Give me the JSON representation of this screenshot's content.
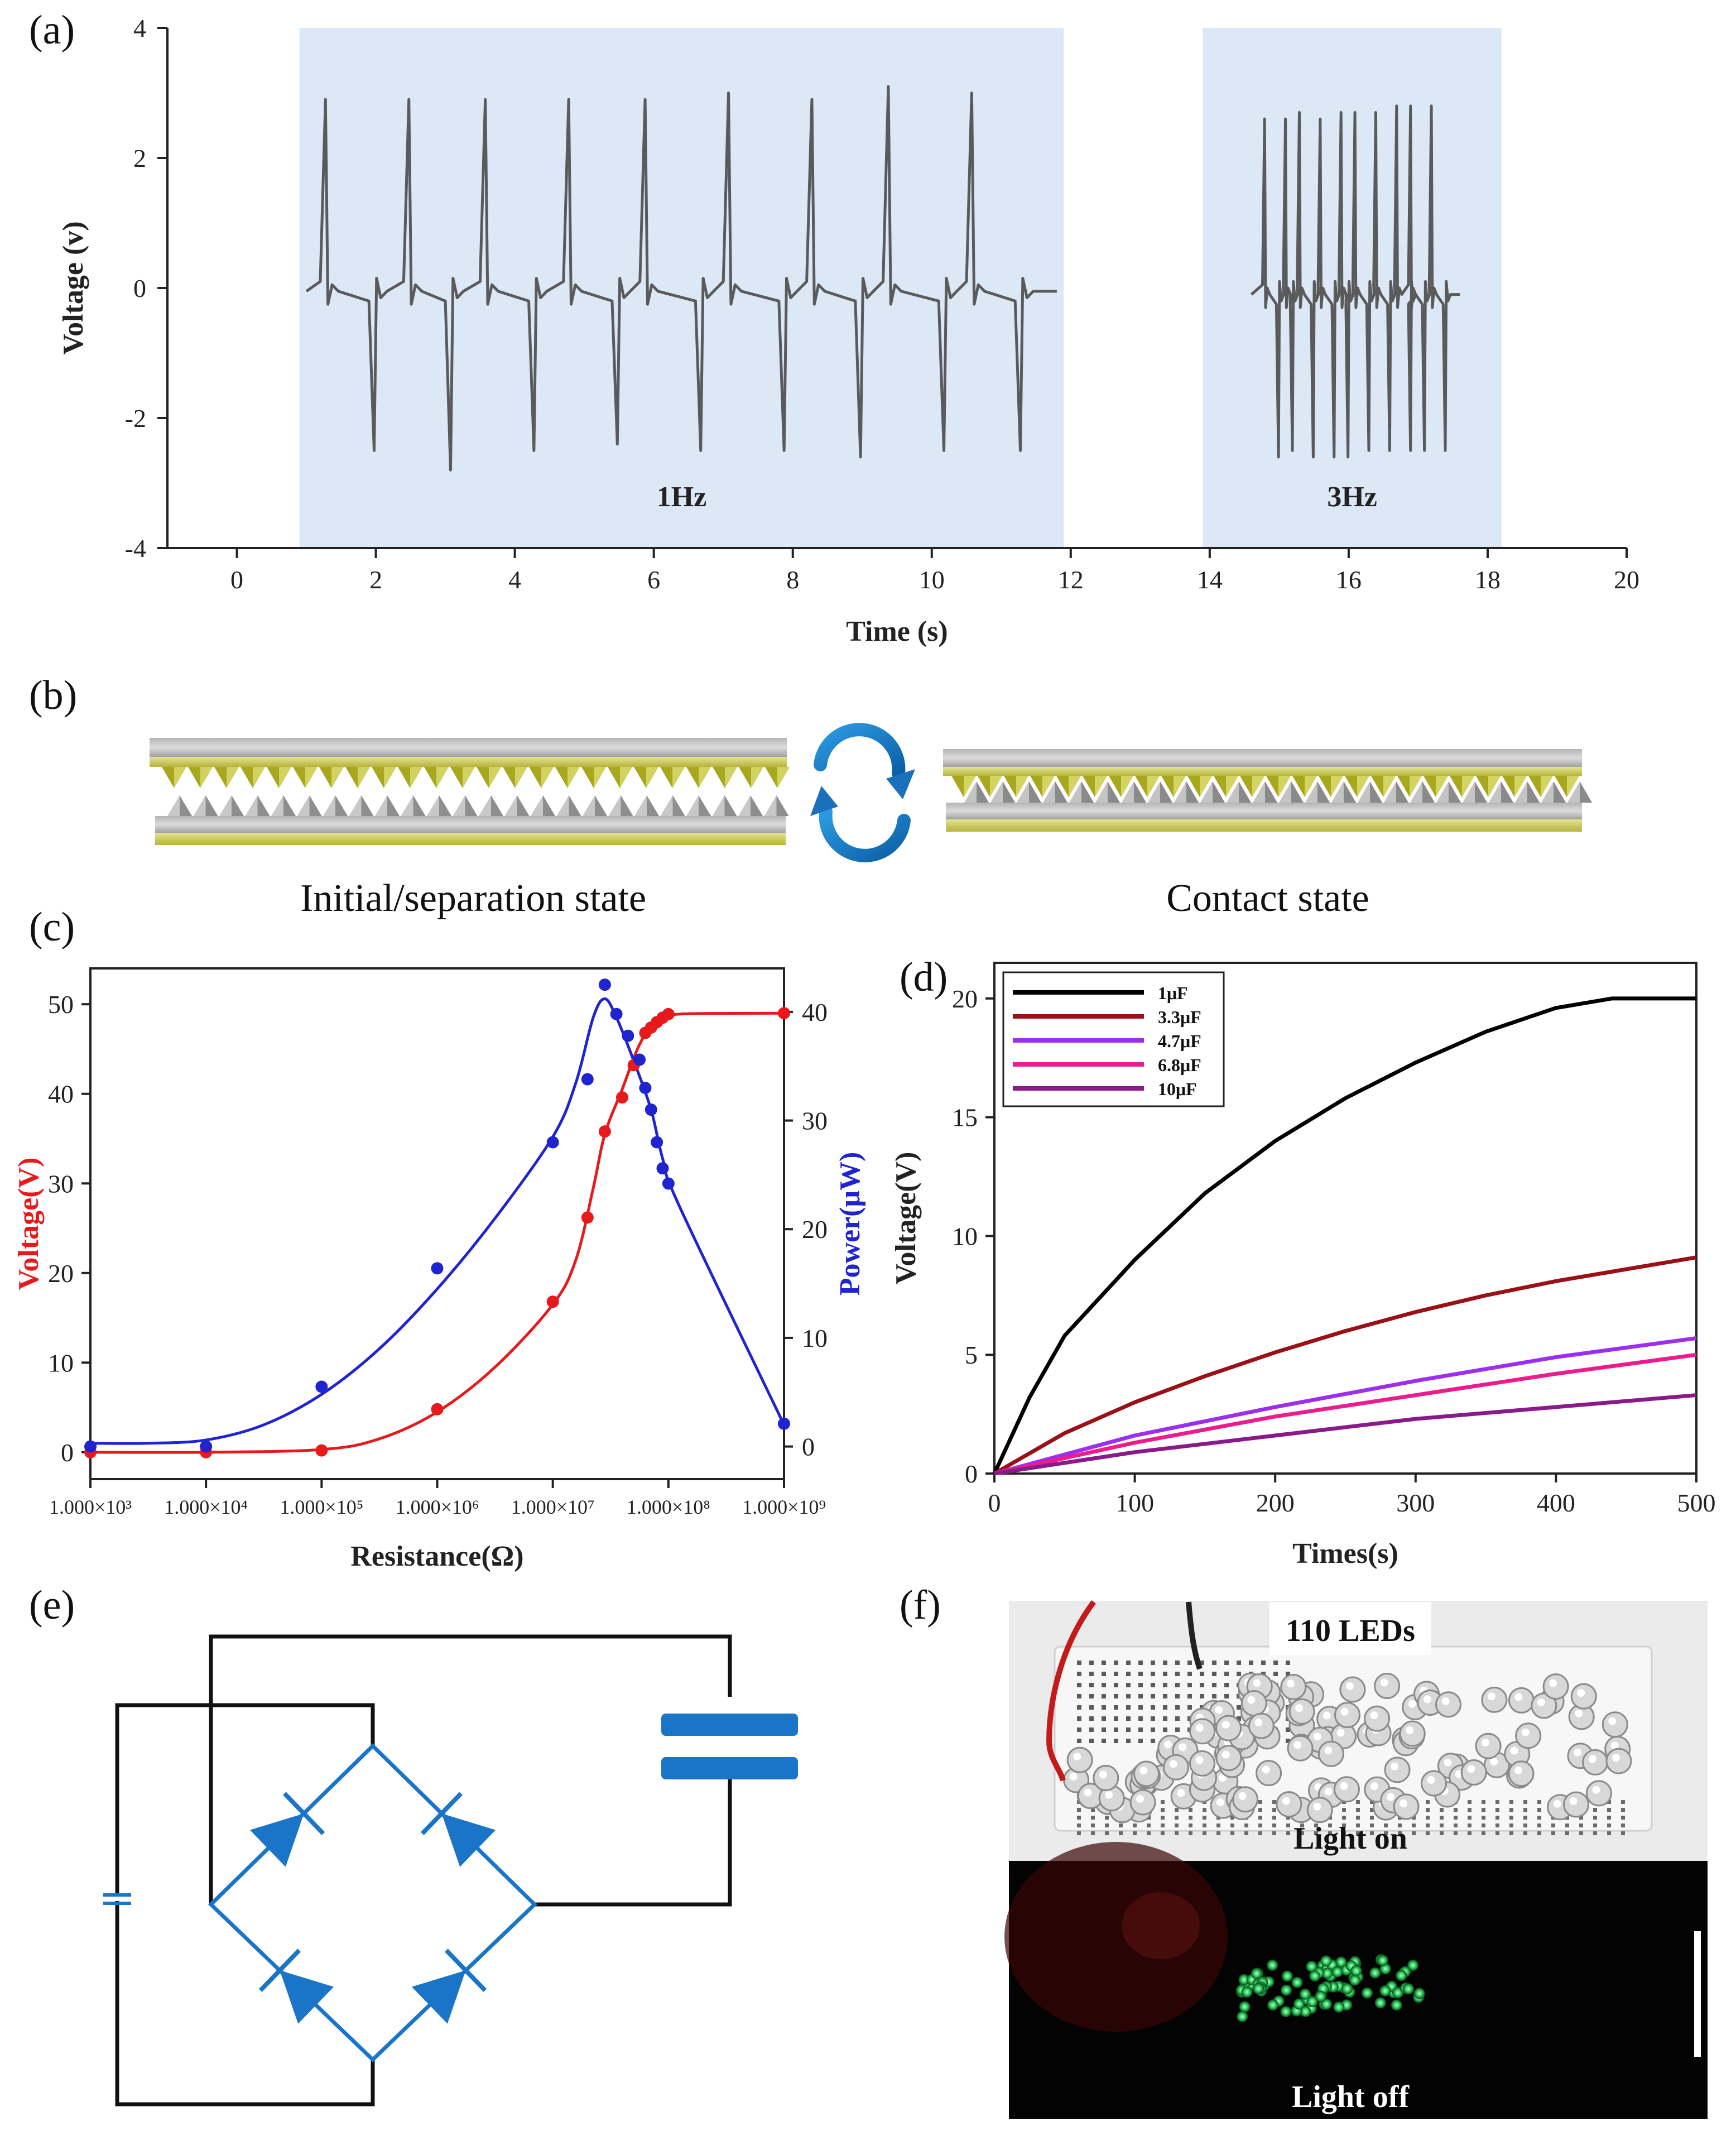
{
  "panels": {
    "a": "(a)",
    "b": "(b)",
    "c": "(c)",
    "d": "(d)",
    "e": "(e)",
    "f": "(f)"
  },
  "chart_data": [
    {
      "id": "a",
      "type": "line",
      "xlabel": "Time (s)",
      "ylabel": "Voltage (v)",
      "xlim": [
        -1,
        20
      ],
      "ylim": [
        -4,
        4
      ],
      "xticks": [
        0,
        2,
        4,
        6,
        8,
        10,
        12,
        14,
        16,
        18,
        20
      ],
      "yticks": [
        -4,
        -2,
        0,
        2,
        4
      ],
      "regions": [
        {
          "label": "1Hz",
          "x_start": 0.9,
          "x_end": 11.9,
          "color": "#dde8f7"
        },
        {
          "label": "3Hz",
          "x_start": 13.9,
          "x_end": 18.2,
          "color": "#dde8f7"
        }
      ],
      "series_1hz": {
        "x_start": 1.0,
        "x_end": 11.8,
        "baseline": -0.05,
        "pos_peaks": [
          [
            1.3,
            2.9
          ],
          [
            2.5,
            2.9
          ],
          [
            3.6,
            2.9
          ],
          [
            4.8,
            2.9
          ],
          [
            5.9,
            2.9
          ],
          [
            7.1,
            3.0
          ],
          [
            8.3,
            2.9
          ],
          [
            9.4,
            3.1
          ],
          [
            10.6,
            3.0
          ]
        ],
        "neg_peaks": [
          [
            2.0,
            -2.5
          ],
          [
            3.1,
            -2.8
          ],
          [
            4.3,
            -2.5
          ],
          [
            5.5,
            -2.4
          ],
          [
            6.7,
            -2.5
          ],
          [
            7.9,
            -2.5
          ],
          [
            9.0,
            -2.6
          ],
          [
            10.2,
            -2.5
          ],
          [
            11.3,
            -2.5
          ]
        ]
      },
      "series_3hz": {
        "x_start": 14.6,
        "x_end": 17.6,
        "baseline": -0.1,
        "pos_peaks": [
          [
            14.8,
            2.6
          ],
          [
            15.1,
            2.6
          ],
          [
            15.3,
            2.7
          ],
          [
            15.6,
            2.6
          ],
          [
            15.9,
            2.7
          ],
          [
            16.1,
            2.7
          ],
          [
            16.4,
            2.7
          ],
          [
            16.7,
            2.8
          ],
          [
            16.9,
            2.8
          ],
          [
            17.2,
            2.8
          ]
        ],
        "neg_peaks": [
          [
            15.0,
            -2.6
          ],
          [
            15.2,
            -2.5
          ],
          [
            15.5,
            -2.6
          ],
          [
            15.8,
            -2.6
          ],
          [
            16.0,
            -2.6
          ],
          [
            16.3,
            -2.5
          ],
          [
            16.6,
            -2.5
          ],
          [
            16.9,
            -2.5
          ],
          [
            17.1,
            -2.5
          ],
          [
            17.4,
            -2.5
          ]
        ]
      }
    },
    {
      "id": "c",
      "type": "scatter",
      "xlabel": "Resistance(Ω)",
      "ylabel_left": "Voltage(V)",
      "ylabel_right": "Power(μW)",
      "xscale": "log",
      "xlim_exp": [
        3,
        9
      ],
      "xtick_labels": [
        "1.000×10³",
        "1.000×10⁴",
        "1.000×10⁵",
        "1.000×10⁶",
        "1.000×10⁷",
        "1.000×10⁸",
        "1.000×10⁹"
      ],
      "ylim_left": [
        -3,
        54
      ],
      "yticks_left": [
        0,
        10,
        20,
        30,
        40,
        50
      ],
      "ylim_right": [
        -3,
        44
      ],
      "yticks_right": [
        0,
        10,
        20,
        30,
        40
      ],
      "left_color": "#e8191b",
      "right_color": "#1f24d0",
      "voltage_points": [
        [
          3,
          0
        ],
        [
          4,
          0
        ],
        [
          5,
          0.2
        ],
        [
          6,
          4.8
        ],
        [
          7,
          16.8
        ],
        [
          7.3,
          26.2
        ],
        [
          7.45,
          35.8
        ],
        [
          7.6,
          39.6
        ],
        [
          7.7,
          43.2
        ],
        [
          7.8,
          46.8
        ],
        [
          7.85,
          47.4
        ],
        [
          7.9,
          48.0
        ],
        [
          7.95,
          48.5
        ],
        [
          8.0,
          48.9
        ],
        [
          9,
          49.0
        ]
      ],
      "voltage_curve": [
        [
          3,
          0
        ],
        [
          4,
          0
        ],
        [
          5,
          0.3
        ],
        [
          5.5,
          1.5
        ],
        [
          6,
          4.5
        ],
        [
          6.5,
          9.5
        ],
        [
          7,
          16.5
        ],
        [
          7.2,
          21.5
        ],
        [
          7.35,
          29.5
        ],
        [
          7.45,
          35.5
        ],
        [
          7.6,
          40.5
        ],
        [
          7.75,
          45.5
        ],
        [
          7.9,
          48.2
        ],
        [
          8.1,
          48.9
        ],
        [
          9,
          49.0
        ]
      ],
      "power_points": [
        [
          3,
          0
        ],
        [
          4,
          0
        ],
        [
          5,
          5.5
        ],
        [
          6,
          16.4
        ],
        [
          7,
          28.0
        ],
        [
          7.3,
          33.8
        ],
        [
          7.45,
          42.5
        ],
        [
          7.55,
          39.8
        ],
        [
          7.65,
          37.8
        ],
        [
          7.75,
          35.6
        ],
        [
          7.8,
          33.0
        ],
        [
          7.85,
          31.0
        ],
        [
          7.9,
          28.0
        ],
        [
          7.95,
          25.6
        ],
        [
          8.0,
          24.2
        ],
        [
          9,
          2.1
        ]
      ],
      "power_curve": [
        [
          3,
          0.3
        ],
        [
          3.5,
          0.3
        ],
        [
          4,
          0.6
        ],
        [
          4.5,
          2.0
        ],
        [
          5,
          4.8
        ],
        [
          5.5,
          9.0
        ],
        [
          6,
          14.5
        ],
        [
          6.5,
          21.0
        ],
        [
          7,
          28.5
        ],
        [
          7.2,
          33.5
        ],
        [
          7.35,
          39.5
        ],
        [
          7.45,
          41.2
        ],
        [
          7.55,
          39.5
        ],
        [
          7.7,
          35.5
        ],
        [
          7.85,
          31.0
        ],
        [
          7.95,
          26.5
        ],
        [
          8.1,
          22.0
        ],
        [
          9,
          2.0
        ]
      ]
    },
    {
      "id": "d",
      "type": "line",
      "xlabel": "Times(s)",
      "ylabel": "Voltage(V)",
      "xlim": [
        0,
        500
      ],
      "ylim": [
        0,
        21.5
      ],
      "xticks": [
        0,
        100,
        200,
        300,
        400,
        500
      ],
      "yticks": [
        0,
        5,
        10,
        15,
        20
      ],
      "series": [
        {
          "name": "1μF",
          "color": "#000000",
          "points": [
            [
              0,
              0
            ],
            [
              25,
              3.2
            ],
            [
              50,
              5.8
            ],
            [
              100,
              9.0
            ],
            [
              150,
              11.8
            ],
            [
              200,
              14.0
            ],
            [
              250,
              15.8
            ],
            [
              300,
              17.3
            ],
            [
              350,
              18.6
            ],
            [
              400,
              19.6
            ],
            [
              440,
              20.0
            ],
            [
              500,
              20.0
            ]
          ]
        },
        {
          "name": "3.3μF",
          "color": "#9b1016",
          "points": [
            [
              0,
              0
            ],
            [
              50,
              1.7
            ],
            [
              100,
              3.0
            ],
            [
              150,
              4.1
            ],
            [
              200,
              5.1
            ],
            [
              250,
              6.0
            ],
            [
              300,
              6.8
            ],
            [
              350,
              7.5
            ],
            [
              400,
              8.1
            ],
            [
              450,
              8.6
            ],
            [
              500,
              9.1
            ]
          ]
        },
        {
          "name": "4.7μF",
          "color": "#9c2ef0",
          "points": [
            [
              0,
              0
            ],
            [
              100,
              1.6
            ],
            [
              200,
              2.8
            ],
            [
              300,
              3.9
            ],
            [
              400,
              4.9
            ],
            [
              500,
              5.7
            ]
          ]
        },
        {
          "name": "6.8μF",
          "color": "#ec1c8e",
          "points": [
            [
              0,
              0
            ],
            [
              100,
              1.3
            ],
            [
              200,
              2.4
            ],
            [
              300,
              3.3
            ],
            [
              400,
              4.2
            ],
            [
              500,
              5.0
            ]
          ]
        },
        {
          "name": "10μF",
          "color": "#8a1a8a",
          "points": [
            [
              0,
              0
            ],
            [
              100,
              0.9
            ],
            [
              200,
              1.6
            ],
            [
              300,
              2.3
            ],
            [
              400,
              2.8
            ],
            [
              500,
              3.3
            ]
          ]
        }
      ]
    }
  ],
  "panel_b": {
    "left_caption": "Initial/separation state",
    "right_caption": "Contact state"
  },
  "panel_f": {
    "title": "110 LEDs",
    "top_caption": "Light on",
    "bottom_caption": "Light off"
  },
  "colors": {
    "shade": "#dde8f7",
    "signal": "#5a5a5a",
    "gold": "#c8c84a",
    "circuit": "#1a75c8"
  }
}
